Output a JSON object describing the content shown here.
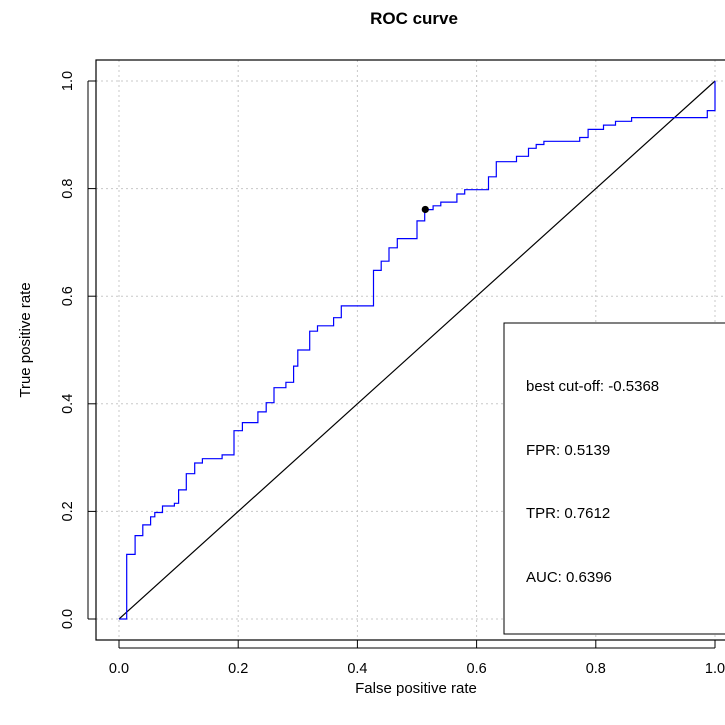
{
  "chart_data": {
    "type": "line",
    "title": "ROC curve",
    "xlabel": "False positive rate",
    "ylabel": "True positive rate",
    "xlim": [
      0,
      1
    ],
    "ylim": [
      0,
      1
    ],
    "grid": true,
    "x_ticks": [
      "0.0",
      "0.2",
      "0.4",
      "0.6",
      "0.8",
      "1.0"
    ],
    "y_ticks": [
      "0.0",
      "0.2",
      "0.4",
      "0.6",
      "0.8",
      "1.0"
    ],
    "series": [
      {
        "color": "#0000ff",
        "points": [
          [
            0.0,
            0.0
          ],
          [
            0.013,
            0.0
          ],
          [
            0.013,
            0.12
          ],
          [
            0.027,
            0.12
          ],
          [
            0.027,
            0.155
          ],
          [
            0.04,
            0.155
          ],
          [
            0.04,
            0.175
          ],
          [
            0.053,
            0.175
          ],
          [
            0.053,
            0.19
          ],
          [
            0.06,
            0.19
          ],
          [
            0.06,
            0.198
          ],
          [
            0.073,
            0.198
          ],
          [
            0.073,
            0.21
          ],
          [
            0.093,
            0.21
          ],
          [
            0.093,
            0.215
          ],
          [
            0.1,
            0.215
          ],
          [
            0.1,
            0.24
          ],
          [
            0.113,
            0.24
          ],
          [
            0.113,
            0.27
          ],
          [
            0.127,
            0.27
          ],
          [
            0.127,
            0.29
          ],
          [
            0.14,
            0.29
          ],
          [
            0.14,
            0.298
          ],
          [
            0.173,
            0.298
          ],
          [
            0.173,
            0.305
          ],
          [
            0.193,
            0.305
          ],
          [
            0.193,
            0.35
          ],
          [
            0.207,
            0.35
          ],
          [
            0.207,
            0.365
          ],
          [
            0.233,
            0.365
          ],
          [
            0.233,
            0.385
          ],
          [
            0.247,
            0.385
          ],
          [
            0.247,
            0.402
          ],
          [
            0.26,
            0.402
          ],
          [
            0.26,
            0.43
          ],
          [
            0.28,
            0.43
          ],
          [
            0.28,
            0.44
          ],
          [
            0.293,
            0.44
          ],
          [
            0.293,
            0.47
          ],
          [
            0.3,
            0.47
          ],
          [
            0.3,
            0.5
          ],
          [
            0.32,
            0.5
          ],
          [
            0.32,
            0.535
          ],
          [
            0.333,
            0.535
          ],
          [
            0.333,
            0.545
          ],
          [
            0.36,
            0.545
          ],
          [
            0.36,
            0.56
          ],
          [
            0.373,
            0.56
          ],
          [
            0.373,
            0.582
          ],
          [
            0.427,
            0.582
          ],
          [
            0.427,
            0.648
          ],
          [
            0.44,
            0.648
          ],
          [
            0.44,
            0.665
          ],
          [
            0.453,
            0.665
          ],
          [
            0.453,
            0.69
          ],
          [
            0.467,
            0.69
          ],
          [
            0.467,
            0.707
          ],
          [
            0.5,
            0.707
          ],
          [
            0.5,
            0.74
          ],
          [
            0.513,
            0.74
          ],
          [
            0.513,
            0.761
          ],
          [
            0.527,
            0.761
          ],
          [
            0.527,
            0.768
          ],
          [
            0.54,
            0.768
          ],
          [
            0.54,
            0.775
          ],
          [
            0.567,
            0.775
          ],
          [
            0.567,
            0.79
          ],
          [
            0.58,
            0.79
          ],
          [
            0.58,
            0.798
          ],
          [
            0.62,
            0.798
          ],
          [
            0.62,
            0.822
          ],
          [
            0.633,
            0.822
          ],
          [
            0.633,
            0.85
          ],
          [
            0.667,
            0.85
          ],
          [
            0.667,
            0.86
          ],
          [
            0.687,
            0.86
          ],
          [
            0.687,
            0.875
          ],
          [
            0.7,
            0.875
          ],
          [
            0.7,
            0.882
          ],
          [
            0.713,
            0.882
          ],
          [
            0.713,
            0.888
          ],
          [
            0.773,
            0.888
          ],
          [
            0.773,
            0.895
          ],
          [
            0.787,
            0.895
          ],
          [
            0.787,
            0.91
          ],
          [
            0.813,
            0.91
          ],
          [
            0.813,
            0.918
          ],
          [
            0.833,
            0.918
          ],
          [
            0.833,
            0.925
          ],
          [
            0.86,
            0.925
          ],
          [
            0.86,
            0.932
          ],
          [
            0.987,
            0.932
          ],
          [
            0.987,
            0.945
          ],
          [
            1.0,
            0.945
          ],
          [
            1.0,
            1.0
          ]
        ]
      },
      {
        "color": "#000000",
        "points": [
          [
            0,
            0
          ],
          [
            1,
            1
          ]
        ]
      }
    ],
    "best_point": {
      "x": 0.5139,
      "y": 0.7612
    },
    "legend": {
      "position": "bottom-right",
      "entries": [
        "best cut-off: -0.5368",
        "FPR: 0.5139",
        "TPR: 0.7612",
        "AUC: 0.6396"
      ]
    }
  }
}
